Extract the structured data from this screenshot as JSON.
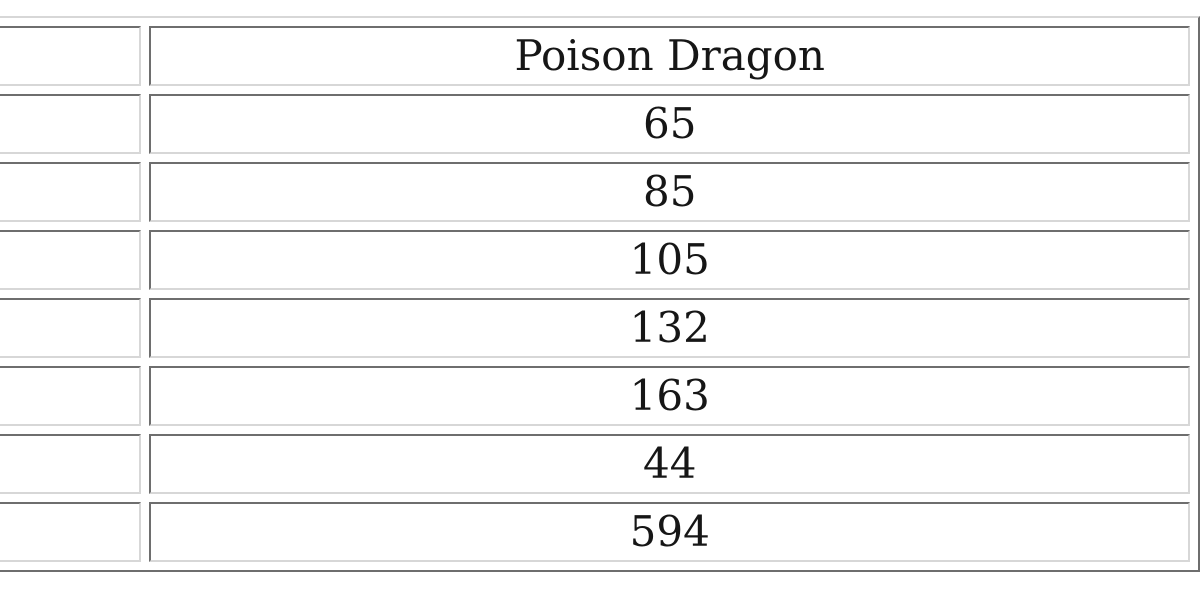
{
  "table": {
    "header": {
      "label_column": "",
      "value_column": "Poison Dragon"
    },
    "rows": [
      {
        "label": "",
        "value": "65"
      },
      {
        "label": "",
        "value": "85"
      },
      {
        "label": "",
        "value": "105"
      },
      {
        "label": "",
        "value": "132"
      },
      {
        "label": "",
        "value": "163"
      },
      {
        "label": "",
        "value": "44"
      },
      {
        "label": "",
        "value": "594"
      }
    ],
    "colors": {
      "border_dark": "#6e6e6e",
      "border_light": "#d7d7d7",
      "text": "#161616",
      "background": "#ffffff"
    }
  }
}
